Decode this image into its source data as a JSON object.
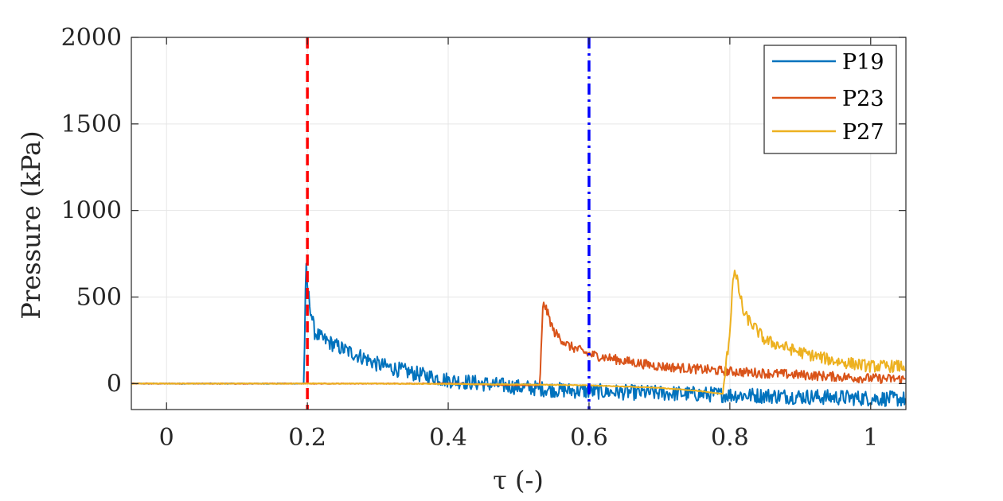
{
  "chart_data": {
    "type": "line",
    "xlabel": "τ (-)",
    "ylabel": "Pressure (kPa)",
    "xlim": [
      -0.05,
      1.05
    ],
    "ylim": [
      -150,
      2000
    ],
    "xticks": [
      0,
      0.2,
      0.4,
      0.6,
      0.8,
      1
    ],
    "xtick_labels": [
      "0",
      "0.2",
      "0.4",
      "0.6",
      "0.8",
      "1"
    ],
    "yticks": [
      0,
      500,
      1000,
      1500,
      2000
    ],
    "ytick_labels": [
      "0",
      "500",
      "1000",
      "1500",
      "2000"
    ],
    "grid": true,
    "legend_position": "top-right",
    "series": [
      {
        "name": "P19",
        "color": "#0072BD",
        "x": [
          -0.05,
          0.18,
          0.195,
          0.198,
          0.2,
          0.205,
          0.21,
          0.22,
          0.25,
          0.28,
          0.3,
          0.35,
          0.4,
          0.45,
          0.5,
          0.55,
          0.6,
          0.7,
          0.8,
          0.9,
          1.0,
          1.05
        ],
        "y": [
          0,
          0,
          0,
          680,
          550,
          420,
          300,
          260,
          200,
          150,
          110,
          60,
          20,
          0,
          -20,
          -35,
          -45,
          -55,
          -65,
          -75,
          -85,
          -90
        ],
        "noise": 45
      },
      {
        "name": "P23",
        "color": "#D95319",
        "x": [
          -0.05,
          0.4,
          0.5,
          0.53,
          0.535,
          0.54,
          0.55,
          0.57,
          0.6,
          0.65,
          0.7,
          0.8,
          0.9,
          1.0,
          1.05
        ],
        "y": [
          0,
          0,
          -10,
          -10,
          480,
          420,
          300,
          220,
          170,
          130,
          100,
          70,
          50,
          30,
          25
        ],
        "noise": 28
      },
      {
        "name": "P27",
        "color": "#EDB120",
        "x": [
          -0.05,
          0.3,
          0.5,
          0.6,
          0.7,
          0.75,
          0.79,
          0.8,
          0.805,
          0.81,
          0.82,
          0.85,
          0.9,
          0.95,
          1.0,
          1.05
        ],
        "y": [
          0,
          0,
          -5,
          -10,
          -25,
          -40,
          -60,
          300,
          650,
          600,
          400,
          250,
          180,
          130,
          100,
          100
        ],
        "noise": 35
      }
    ],
    "vlines": [
      {
        "x": 0.2,
        "color": "#FF0000",
        "style": "dashed"
      },
      {
        "x": 0.6,
        "color": "#0000FF",
        "style": "dashdot"
      }
    ]
  }
}
